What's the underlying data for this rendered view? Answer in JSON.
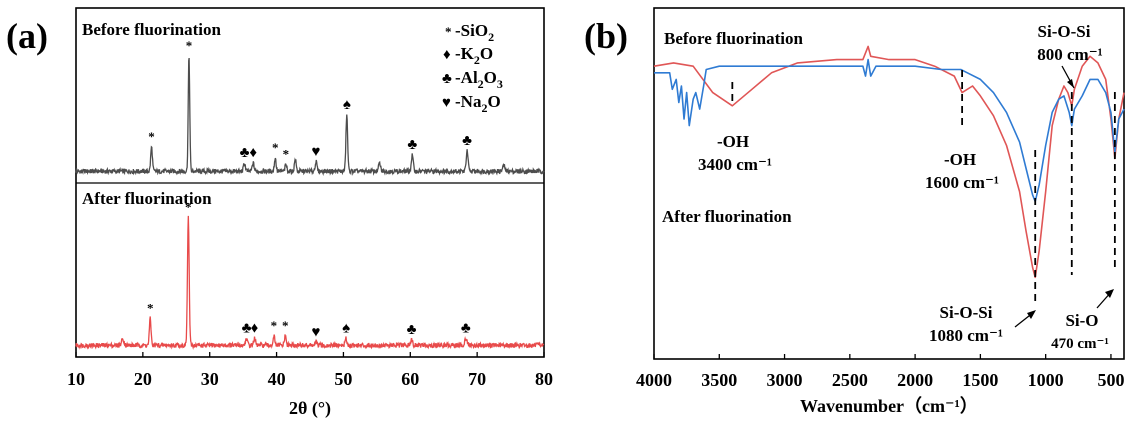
{
  "chart_data": [
    {
      "panel_label": "(a)",
      "type": "line",
      "xlabel": "2θ (°)",
      "ylabel": "",
      "xlim": [
        10,
        80
      ],
      "xticks": [
        10,
        20,
        30,
        40,
        50,
        60,
        70,
        80
      ],
      "legend": {
        "placement": "top-right",
        "entries": [
          {
            "symbol": "*",
            "label": "-SiO",
            "sub": "2"
          },
          {
            "symbol": "♦",
            "label": "-K",
            "sub": "2",
            "tail": "O"
          },
          {
            "symbol": "♣",
            "label": "-Al",
            "sub": "2",
            "tail": "O",
            "sub2": "3"
          },
          {
            "symbol": "♥",
            "label": "-Na",
            "sub": "2",
            "tail": "O"
          }
        ]
      },
      "series": [
        {
          "name": "Before fluorination",
          "color": "#4d4d4d",
          "baseline": 0.08,
          "peaks": [
            {
              "x": 21.3,
              "h": 0.18,
              "w": 0.18,
              "marker": "*"
            },
            {
              "x": 26.9,
              "h": 0.86,
              "w": 0.16,
              "marker": "*"
            },
            {
              "x": 35.2,
              "h": 0.06,
              "w": 0.2,
              "marker": "♣"
            },
            {
              "x": 36.5,
              "h": 0.06,
              "w": 0.2,
              "marker": "♦"
            },
            {
              "x": 39.8,
              "h": 0.1,
              "w": 0.18,
              "marker": "*"
            },
            {
              "x": 41.4,
              "h": 0.05,
              "w": 0.18,
              "marker": "*"
            },
            {
              "x": 42.8,
              "h": 0.09,
              "w": 0.18,
              "marker": ""
            },
            {
              "x": 45.9,
              "h": 0.07,
              "w": 0.2,
              "marker": "♥"
            },
            {
              "x": 50.5,
              "h": 0.42,
              "w": 0.18,
              "marker": "♠"
            },
            {
              "x": 55.4,
              "h": 0.06,
              "w": 0.2,
              "marker": ""
            },
            {
              "x": 60.3,
              "h": 0.12,
              "w": 0.2,
              "marker": "♣"
            },
            {
              "x": 68.5,
              "h": 0.15,
              "w": 0.2,
              "marker": "♣"
            },
            {
              "x": 74.0,
              "h": 0.04,
              "w": 0.25,
              "marker": ""
            }
          ]
        },
        {
          "name": "After fluorination",
          "color": "#e84a4a",
          "baseline": 0.02,
          "peaks": [
            {
              "x": 17.0,
              "h": 0.05,
              "w": 0.25,
              "marker": ""
            },
            {
              "x": 21.1,
              "h": 0.2,
              "w": 0.18,
              "marker": "*"
            },
            {
              "x": 26.8,
              "h": 0.96,
              "w": 0.18,
              "marker": "*"
            },
            {
              "x": 35.5,
              "h": 0.05,
              "w": 0.2,
              "marker": "♣"
            },
            {
              "x": 36.7,
              "h": 0.05,
              "w": 0.2,
              "marker": "♦"
            },
            {
              "x": 39.6,
              "h": 0.07,
              "w": 0.18,
              "marker": "*"
            },
            {
              "x": 41.3,
              "h": 0.07,
              "w": 0.18,
              "marker": "*"
            },
            {
              "x": 45.9,
              "h": 0.02,
              "w": 0.2,
              "marker": "♥"
            },
            {
              "x": 50.4,
              "h": 0.05,
              "w": 0.2,
              "marker": "♠"
            },
            {
              "x": 60.2,
              "h": 0.04,
              "w": 0.2,
              "marker": "♣"
            },
            {
              "x": 68.3,
              "h": 0.05,
              "w": 0.25,
              "marker": "♣"
            }
          ]
        }
      ]
    },
    {
      "panel_label": "(b)",
      "type": "line",
      "xlabel": "Wavenumber（cm⁻¹）",
      "ylabel": "",
      "xlim": [
        4000,
        400
      ],
      "xticks": [
        4000,
        3500,
        3000,
        2500,
        2000,
        1500,
        1000,
        500
      ],
      "series": [
        {
          "name": "Before fluorination",
          "color": "#e05656",
          "points": [
            [
              4000,
              0.86
            ],
            [
              3850,
              0.87
            ],
            [
              3700,
              0.86
            ],
            [
              3550,
              0.78
            ],
            [
              3400,
              0.74
            ],
            [
              3250,
              0.79
            ],
            [
              3100,
              0.84
            ],
            [
              2900,
              0.87
            ],
            [
              2600,
              0.88
            ],
            [
              2400,
              0.88
            ],
            [
              2360,
              0.92
            ],
            [
              2340,
              0.89
            ],
            [
              2200,
              0.88
            ],
            [
              2000,
              0.88
            ],
            [
              1850,
              0.86
            ],
            [
              1700,
              0.83
            ],
            [
              1640,
              0.78
            ],
            [
              1560,
              0.8
            ],
            [
              1500,
              0.77
            ],
            [
              1400,
              0.71
            ],
            [
              1300,
              0.62
            ],
            [
              1200,
              0.48
            ],
            [
              1150,
              0.36
            ],
            [
              1100,
              0.25
            ],
            [
              1080,
              0.22
            ],
            [
              1050,
              0.3
            ],
            [
              1000,
              0.48
            ],
            [
              950,
              0.68
            ],
            [
              900,
              0.76
            ],
            [
              860,
              0.8
            ],
            [
              830,
              0.78
            ],
            [
              800,
              0.74
            ],
            [
              780,
              0.79
            ],
            [
              720,
              0.86
            ],
            [
              660,
              0.89
            ],
            [
              600,
              0.87
            ],
            [
              540,
              0.82
            ],
            [
              500,
              0.7
            ],
            [
              470,
              0.58
            ],
            [
              440,
              0.7
            ],
            [
              400,
              0.78
            ]
          ]
        },
        {
          "name": "After fluorination",
          "color": "#2f7bd3",
          "points": [
            [
              4000,
              0.84
            ],
            [
              3880,
              0.84
            ],
            [
              3860,
              0.79
            ],
            [
              3830,
              0.82
            ],
            [
              3810,
              0.75
            ],
            [
              3790,
              0.8
            ],
            [
              3770,
              0.7
            ],
            [
              3750,
              0.78
            ],
            [
              3730,
              0.68
            ],
            [
              3700,
              0.76
            ],
            [
              3680,
              0.78
            ],
            [
              3650,
              0.73
            ],
            [
              3620,
              0.8
            ],
            [
              3600,
              0.85
            ],
            [
              3500,
              0.86
            ],
            [
              3000,
              0.86
            ],
            [
              2400,
              0.86
            ],
            [
              2380,
              0.83
            ],
            [
              2360,
              0.88
            ],
            [
              2340,
              0.83
            ],
            [
              2300,
              0.86
            ],
            [
              2000,
              0.86
            ],
            [
              1800,
              0.85
            ],
            [
              1650,
              0.85
            ],
            [
              1600,
              0.84
            ],
            [
              1500,
              0.82
            ],
            [
              1400,
              0.78
            ],
            [
              1300,
              0.72
            ],
            [
              1200,
              0.63
            ],
            [
              1150,
              0.55
            ],
            [
              1100,
              0.47
            ],
            [
              1080,
              0.45
            ],
            [
              1050,
              0.5
            ],
            [
              1000,
              0.62
            ],
            [
              950,
              0.72
            ],
            [
              900,
              0.76
            ],
            [
              860,
              0.77
            ],
            [
              820,
              0.72
            ],
            [
              800,
              0.68
            ],
            [
              780,
              0.73
            ],
            [
              720,
              0.77
            ],
            [
              660,
              0.82
            ],
            [
              600,
              0.82
            ],
            [
              540,
              0.78
            ],
            [
              500,
              0.72
            ],
            [
              470,
              0.6
            ],
            [
              440,
              0.7
            ],
            [
              400,
              0.73
            ]
          ]
        }
      ],
      "annotations": [
        {
          "lines": [
            "-OH",
            "3400 cm⁻¹"
          ],
          "x": 3400
        },
        {
          "lines": [
            "-OH",
            "1600 cm⁻¹"
          ],
          "x": 1640
        },
        {
          "lines": [
            "Si-O-Si",
            "800 cm⁻¹"
          ],
          "x": 800
        },
        {
          "lines": [
            "Si-O-Si",
            "1080 cm⁻¹"
          ],
          "x": 1080
        },
        {
          "lines": [
            "Si-O",
            "470 cm⁻¹"
          ],
          "x": 470
        }
      ]
    }
  ]
}
